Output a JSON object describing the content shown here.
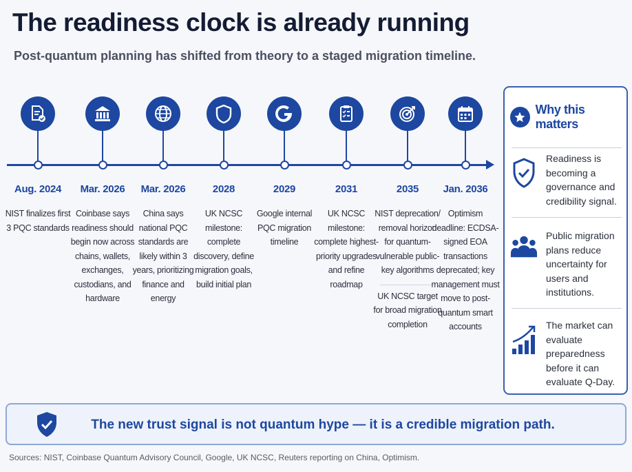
{
  "title": "The readiness clock is already running",
  "subtitle": "Post-quantum planning has shifted from theory to a staged migration timeline.",
  "colors": {
    "accent": "#1d47a0",
    "title": "#141c33",
    "background": "#f6f7fb"
  },
  "timeline": [
    {
      "icon": "document-check-icon",
      "date": "Aug. 2024",
      "desc": "NIST finalizes first 3 PQC standards"
    },
    {
      "icon": "bank-icon",
      "date": "Mar. 2026",
      "desc": "Coinbase says readiness should begin now across chains, wallets, exchanges, custodians, and hardware"
    },
    {
      "icon": "globe-icon",
      "date": "Mar. 2026",
      "desc": "China says national PQC standards are likely within 3 years, prioritizing finance and energy"
    },
    {
      "icon": "shield-icon",
      "date": "2028",
      "desc": "UK NCSC milestone: complete discovery, define migration goals, build initial plan"
    },
    {
      "icon": "google-icon",
      "date": "2029",
      "desc": "Google internal PQC migration timeline"
    },
    {
      "icon": "checklist-icon",
      "date": "2031",
      "desc": "UK NCSC milestone: complete highest-priority upgrades and refine roadmap"
    },
    {
      "icon": "target-icon",
      "date": "2035",
      "desc": "NIST deprecation/ removal horizon for quantum-vulnerable public-key algorithms",
      "desc2": "UK NCSC target for broad migration completion"
    },
    {
      "icon": "calendar-icon",
      "date": "Jan. 2036",
      "desc": "Optimism deadline: ECDSA-signed EOA transactions deprecated; key management must move to post-quantum smart accounts"
    }
  ],
  "panel": {
    "title": "Why this matters",
    "items": [
      {
        "icon": "shield-check-icon",
        "text": "Readiness is becoming a governance and credibility signal."
      },
      {
        "icon": "people-icon",
        "text": "Public migration plans reduce uncertainty for users and institutions."
      },
      {
        "icon": "growth-chart-icon",
        "text": "The market can evaluate preparedness before it can evaluate Q-Day."
      }
    ]
  },
  "banner": "The new trust signal is not quantum hype — it is a credible migration path.",
  "sources": "Sources: NIST, Coinbase Quantum Advisory Council, Google, UK NCSC, Reuters reporting on China, Optimism."
}
